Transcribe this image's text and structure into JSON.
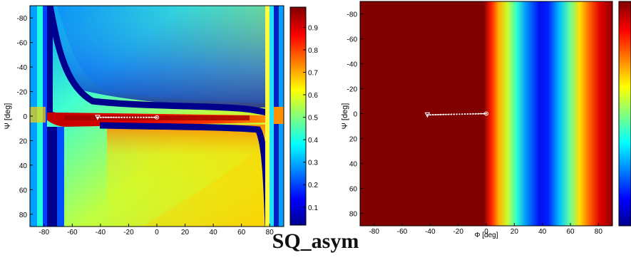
{
  "caption": "SQ_asym",
  "colormap": "jet",
  "chart_data": [
    {
      "type": "heatmap",
      "panel": "left",
      "ylabel": "Ψ [deg]",
      "xlabel": "",
      "xlim": [
        -90,
        90
      ],
      "ylim": [
        90,
        -90
      ],
      "xticks": [
        "-80",
        "-60",
        "-40",
        "-20",
        "0",
        "20",
        "40",
        "60",
        "80"
      ],
      "yticks": [
        "-80",
        "-60",
        "-40",
        "-20",
        "0",
        "20",
        "40",
        "60",
        "80"
      ],
      "colorbar_ticks": [
        "0.9",
        "0.8",
        "0.7",
        "0.6",
        "0.5",
        "0.4",
        "0.3",
        "0.2",
        "0.1"
      ],
      "colorbar_range": [
        0.02,
        0.99
      ],
      "path": {
        "x": [
          -42,
          0
        ],
        "y": [
          1,
          1
        ],
        "color": "#ffffff"
      }
    },
    {
      "type": "heatmap",
      "panel": "right",
      "ylabel": "Ψ [deg]",
      "xlabel": "Φ [deg]",
      "xlim": [
        -90,
        90
      ],
      "ylim": [
        90,
        -90
      ],
      "xticks": [
        "-80",
        "-60",
        "-40",
        "-20",
        "0",
        "20",
        "40",
        "60",
        "80"
      ],
      "yticks": [
        "-80",
        "-60",
        "-40",
        "-20",
        "0",
        "20",
        "40",
        "60",
        "80"
      ],
      "path": {
        "x": [
          -42,
          0
        ],
        "y": [
          1,
          0
        ],
        "color": "#ffffff"
      }
    }
  ]
}
